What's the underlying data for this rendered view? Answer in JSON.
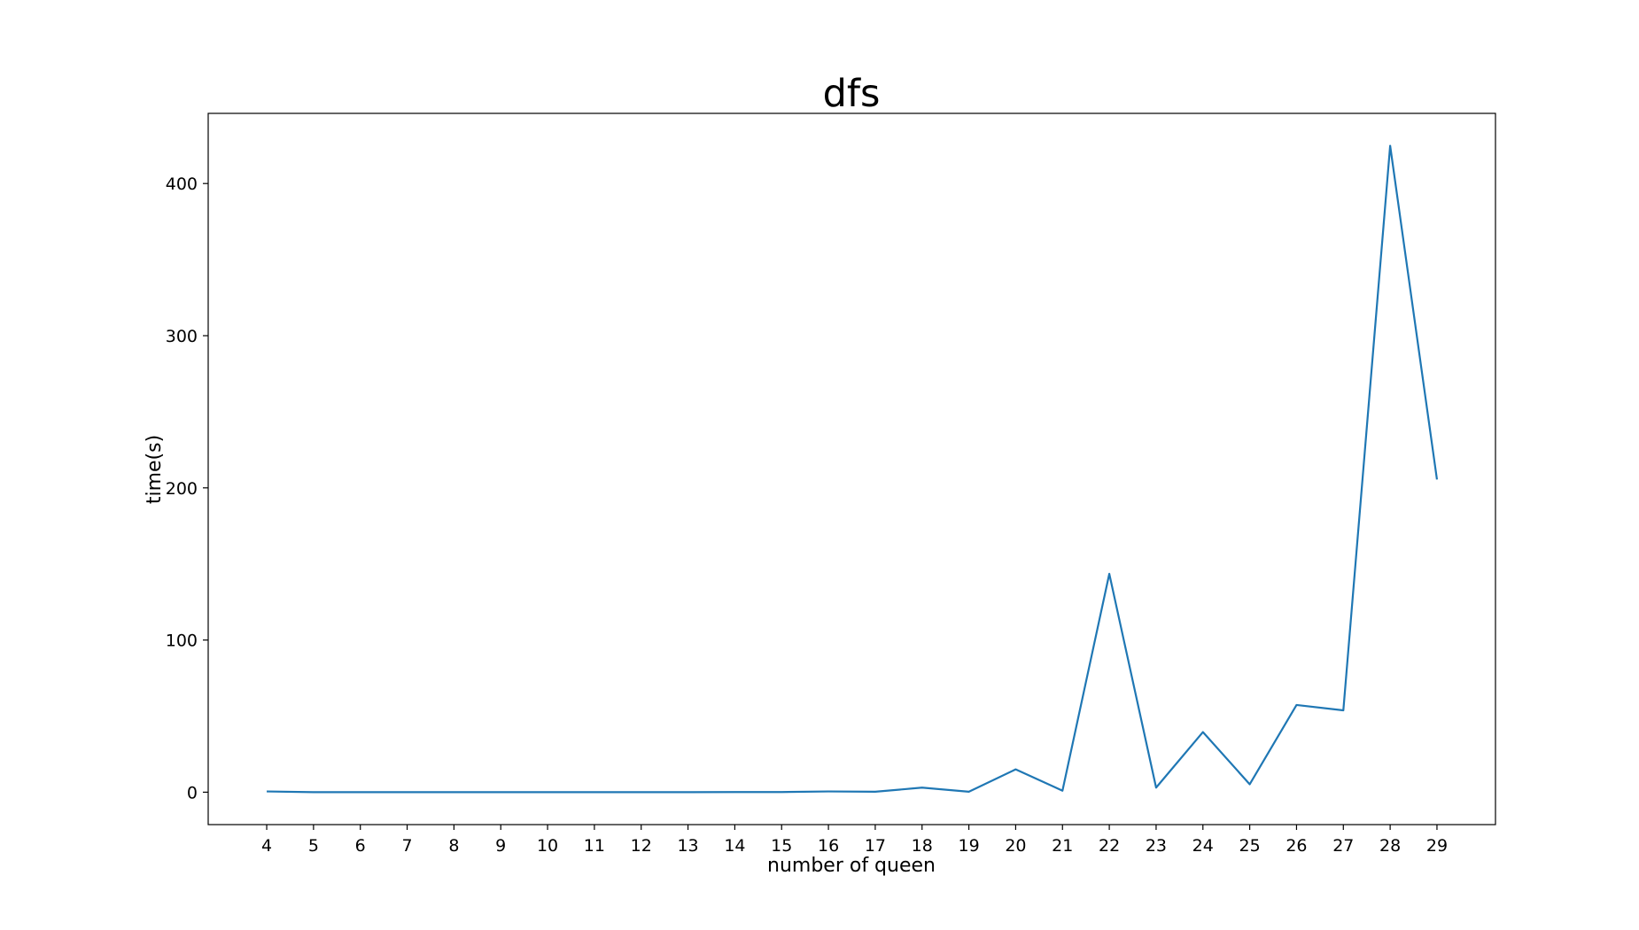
{
  "chart_data": {
    "type": "line",
    "title": "dfs",
    "xlabel": "number of queen",
    "ylabel": "time(s)",
    "x": [
      4,
      5,
      6,
      7,
      8,
      9,
      10,
      11,
      12,
      13,
      14,
      15,
      16,
      17,
      18,
      19,
      20,
      21,
      22,
      23,
      24,
      25,
      26,
      27,
      28,
      29
    ],
    "x_tick_labels": [
      "4",
      "5",
      "6",
      "7",
      "8",
      "9",
      "10",
      "11",
      "12",
      "13",
      "14",
      "15",
      "16",
      "17",
      "18",
      "19",
      "20",
      "21",
      "22",
      "23",
      "24",
      "25",
      "26",
      "27",
      "28",
      "29"
    ],
    "y_ticks": [
      0,
      100,
      200,
      300,
      400
    ],
    "y_tick_labels": [
      "0",
      "100",
      "200",
      "300",
      "400"
    ],
    "series": [
      {
        "values": [
          0.5,
          0.0,
          0.0,
          0.0,
          0.0,
          0.0,
          0.0,
          0.0,
          0.0,
          0.0,
          0.1,
          0.1,
          0.5,
          0.3,
          3.0,
          0.3,
          15.0,
          1.0,
          143.5,
          3.0,
          39.5,
          5.2,
          57.3,
          53.8,
          424.8,
          205.5
        ],
        "color": "#1f77b4"
      }
    ],
    "xlim": [
      2.75,
      30.25
    ],
    "ylim": [
      -21.3,
      446.1
    ],
    "grid": false,
    "legend": "none"
  }
}
